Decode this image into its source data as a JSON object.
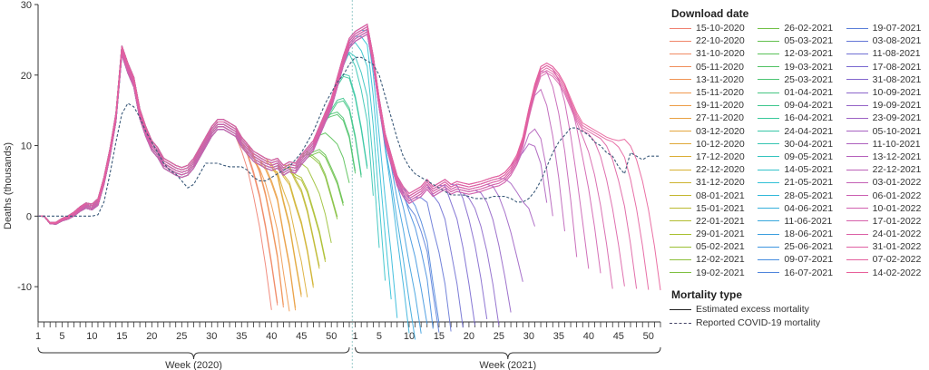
{
  "chart_data": {
    "type": "line",
    "ylabel": "Deaths (thousands)",
    "ylim": [
      -15,
      30
    ],
    "yticks": [
      -10,
      0,
      10,
      20,
      30
    ],
    "x_groups": [
      {
        "label": "Week (2020)",
        "weeks": 53,
        "tick_labels": [
          1,
          5,
          10,
          15,
          20,
          25,
          30,
          35,
          40,
          45,
          50
        ]
      },
      {
        "label": "Week (2021)",
        "weeks": 52,
        "tick_labels": [
          1,
          5,
          10,
          15,
          20,
          25,
          30,
          35,
          40,
          45,
          50
        ]
      }
    ],
    "final_estimate": [
      0,
      0,
      -1,
      -1,
      -0.5,
      -0.2,
      0.3,
      1,
      1.5,
      1.3,
      2,
      5,
      9,
      14,
      23.5,
      21,
      19,
      14.5,
      12,
      10,
      9,
      7.5,
      7,
      6.5,
      6.2,
      6.5,
      7.5,
      9,
      10.5,
      12,
      13,
      13,
      12.5,
      12,
      10.5,
      9.5,
      8.5,
      8,
      7.5,
      7.2,
      7.5,
      6.5,
      7,
      6.8,
      8,
      9,
      10,
      12,
      14,
      16,
      19,
      22,
      24.5,
      25.5,
      26,
      26.5,
      22,
      16,
      11,
      8,
      5,
      3.5,
      2.5,
      3,
      3.5,
      4.5,
      3.5,
      4,
      4.5,
      3.8,
      4.2,
      4,
      3.8,
      4,
      4.2,
      4.5,
      4.8,
      5,
      5.5,
      6.5,
      8,
      10.5,
      14.5,
      18,
      20.5,
      21,
      20.5,
      19.5,
      18,
      16,
      14,
      12.5,
      12,
      11.5,
      11,
      10.5,
      10.2,
      10,
      10.2,
      9.8,
      9.5,
      9.2,
      9,
      8.8,
      8.6
    ],
    "reported_covid": [
      0,
      0,
      0,
      0,
      0,
      0,
      0,
      0,
      0,
      0,
      0.2,
      2,
      6,
      10.5,
      14.5,
      16,
      15.5,
      14,
      12,
      10.5,
      9,
      7.5,
      6.5,
      6,
      5,
      4,
      4.5,
      6,
      7.5,
      7.5,
      7.5,
      7.2,
      7,
      7,
      7,
      6.5,
      5.5,
      5,
      5,
      5.5,
      6,
      6.5,
      7,
      8,
      9,
      10.5,
      12,
      14,
      16,
      17.5,
      19,
      20,
      21.5,
      22.5,
      22.5,
      22,
      21.5,
      20,
      17,
      14,
      11,
      8.5,
      7,
      6,
      5.5,
      5,
      4.5,
      4,
      3.5,
      3,
      3,
      3,
      2.8,
      2.5,
      2.5,
      2.5,
      2.8,
      2.8,
      2.8,
      2.5,
      2,
      2,
      2.5,
      3.5,
      5,
      7,
      9,
      10.5,
      11.5,
      12.5,
      12.5,
      12,
      11.5,
      10.5,
      10,
      9,
      8.5,
      7,
      6,
      9,
      8.5,
      8,
      8.5,
      8.5,
      8.5
    ],
    "legend": {
      "download_title": "Download date",
      "download_dates": [
        "15-10-2020",
        "22-10-2020",
        "31-10-2020",
        "05-11-2020",
        "13-11-2020",
        "15-11-2020",
        "19-11-2020",
        "27-11-2020",
        "03-12-2020",
        "10-12-2020",
        "17-12-2020",
        "22-12-2020",
        "31-12-2020",
        "08-01-2021",
        "15-01-2021",
        "22-01-2021",
        "29-01-2021",
        "05-02-2021",
        "12-02-2021",
        "19-02-2021",
        "26-02-2021",
        "05-03-2021",
        "12-03-2021",
        "19-03-2021",
        "25-03-2021",
        "01-04-2021",
        "09-04-2021",
        "16-04-2021",
        "24-04-2021",
        "30-04-2021",
        "09-05-2021",
        "14-05-2021",
        "21-05-2021",
        "28-05-2021",
        "04-06-2021",
        "11-06-2021",
        "18-06-2021",
        "25-06-2021",
        "09-07-2021",
        "16-07-2021",
        "19-07-2021",
        "03-08-2021",
        "11-08-2021",
        "17-08-2021",
        "31-08-2021",
        "10-09-2021",
        "19-09-2021",
        "23-09-2021",
        "05-10-2021",
        "11-10-2021",
        "13-12-2021",
        "22-12-2021",
        "03-01-2022",
        "06-01-2022",
        "10-01-2022",
        "17-01-2022",
        "24-01-2022",
        "31-01-2022",
        "07-02-2022",
        "14-02-2022"
      ],
      "mortality_title": "Mortality type",
      "mortality_types": [
        "Estimated excess mortality",
        "Reported COVID-19 mortality"
      ]
    },
    "colors": {
      "reported_line": "#3b5a7a",
      "axis": "#333333",
      "divider": "#9cc",
      "palette_stops": [
        "#f08070",
        "#f09a4a",
        "#d8b030",
        "#a8c030",
        "#5cc050",
        "#38c898",
        "#30c0d8",
        "#4090e0",
        "#7868d0",
        "#a860c0",
        "#d060b0",
        "#e8609a"
      ]
    }
  }
}
